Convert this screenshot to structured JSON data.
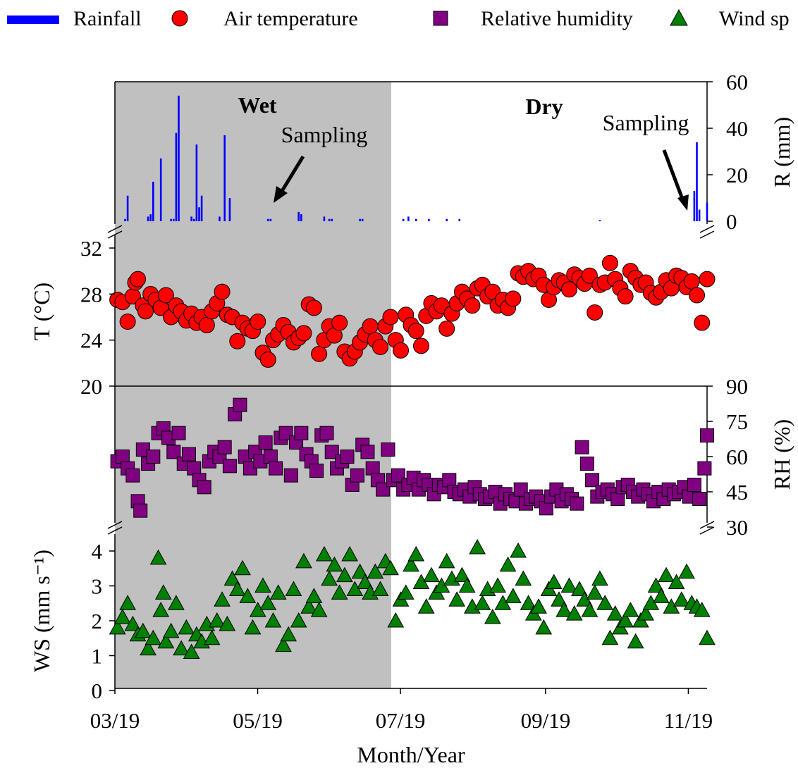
{
  "legend": [
    {
      "label": "Rainfall",
      "marker": "bar",
      "color": "#0000ff"
    },
    {
      "label": "Air temperature",
      "marker": "circle",
      "color": "#ff0000"
    },
    {
      "label": "Relative humidity",
      "marker": "square",
      "color": "#800080"
    },
    {
      "label": "Wind sp",
      "marker": "triangle",
      "color": "#008000"
    }
  ],
  "season_labels": {
    "wet": "Wet",
    "dry": "Dry"
  },
  "annotations": {
    "sampling_1": "Sampling",
    "sampling_2": "Sampling"
  },
  "x_axis": {
    "label": "Month/Year",
    "ticks": [
      "03/19",
      "05/19",
      "07/19",
      "09/19",
      "11/19"
    ]
  },
  "axes": {
    "rain": {
      "label": "R (mm)",
      "ticks": [
        0,
        20,
        40,
        60
      ]
    },
    "temp": {
      "label": "T (°C)",
      "ticks": [
        20,
        24,
        28,
        32
      ]
    },
    "rh": {
      "label": "RH (%)",
      "ticks": [
        30,
        45,
        60,
        75,
        90
      ]
    },
    "ws": {
      "label": "WS (mm s⁻¹)",
      "ticks": [
        0,
        1,
        2,
        3,
        4
      ]
    }
  },
  "chart_data": [
    {
      "type": "bar",
      "title": "",
      "xlabel": "Month/Year",
      "ylabel": "R (mm)",
      "ylim": [
        0,
        60
      ],
      "series": [
        {
          "name": "Rainfall",
          "color": "#0000ff",
          "x": [
            4,
            5,
            13,
            14,
            15,
            18,
            22,
            23,
            24,
            25,
            30,
            31,
            32,
            33,
            34,
            41,
            43,
            45,
            60,
            61,
            72,
            73,
            82,
            84,
            85,
            96,
            97,
            113,
            115,
            118,
            123,
            130,
            135,
            190,
            227,
            228,
            229,
            232
          ],
          "values": [
            1,
            11,
            2,
            3,
            17,
            27,
            1,
            1,
            38,
            54,
            2,
            1,
            33,
            6,
            11,
            2,
            37,
            10,
            1,
            1,
            4,
            3,
            2,
            1,
            1,
            1,
            1,
            1,
            2,
            1,
            1,
            1,
            1,
            0.5,
            13,
            34,
            5,
            8
          ]
        }
      ],
      "shaded_period": {
        "label": "Wet",
        "x_start": 0,
        "x_end": 107
      },
      "unshaded_period": {
        "label": "Dry"
      }
    },
    {
      "type": "scatter",
      "xlabel": "Month/Year",
      "ylabel": "T (°C)",
      "ylim": [
        20,
        32
      ],
      "series": [
        {
          "name": "Air temperature",
          "color": "#ff0000",
          "x": [
            1,
            3,
            5,
            7,
            8,
            9,
            11,
            12,
            14,
            16,
            18,
            20,
            22,
            24,
            26,
            28,
            30,
            32,
            34,
            36,
            38,
            40,
            42,
            44,
            46,
            48,
            50,
            52,
            54,
            56,
            58,
            60,
            62,
            64,
            66,
            68,
            70,
            72,
            74,
            76,
            78,
            80,
            82,
            84,
            86,
            88,
            90,
            92,
            94,
            96,
            98,
            100,
            102,
            104,
            106,
            108,
            110,
            112,
            114,
            116,
            118,
            120,
            122,
            124,
            126,
            128,
            130,
            132,
            134,
            136,
            138,
            140,
            142,
            144,
            146,
            148,
            150,
            152,
            154,
            156,
            158,
            160,
            162,
            164,
            166,
            168,
            170,
            172,
            174,
            176,
            178,
            180,
            182,
            184,
            186,
            188,
            190,
            192,
            194,
            196,
            198,
            200,
            202,
            204,
            206,
            208,
            210,
            212,
            214,
            216,
            218,
            220,
            222,
            224,
            226,
            228,
            230,
            232
          ],
          "values": [
            27.5,
            27.3,
            25.6,
            27.8,
            29,
            29.3,
            27,
            26.5,
            28,
            27.5,
            26.8,
            27.9,
            26,
            27,
            26.5,
            25.7,
            26.3,
            25.5,
            26,
            25.3,
            26.5,
            27.2,
            28.2,
            26.2,
            26,
            23.9,
            25.5,
            25,
            24.8,
            25.6,
            22.9,
            22.3,
            24,
            24.5,
            25.3,
            24.7,
            23.8,
            24.2,
            24.6,
            27.1,
            26.8,
            22.8,
            24,
            25.2,
            24.4,
            25.5,
            23,
            22.4,
            23,
            23.8,
            24.5,
            25.2,
            24,
            23.4,
            25.2,
            26,
            24,
            23.1,
            26.2,
            25.3,
            24.8,
            23.5,
            26.1,
            27.2,
            26.5,
            27,
            25,
            26.3,
            27.2,
            28.2,
            27.6,
            27,
            28.5,
            28.8,
            27.8,
            28.2,
            27,
            27.5,
            26.8,
            27.6,
            29.8,
            29.5,
            30,
            29.3,
            29.6,
            28.8,
            27.5,
            28.6,
            29.2,
            29,
            28.4,
            29.7,
            29.4,
            28.9,
            29.6,
            26.4,
            28.8,
            29,
            30.7,
            29.3,
            28.5,
            27.8,
            30,
            29.4,
            28.8,
            29,
            28.1,
            27.7,
            28.2,
            29.2,
            28.5,
            29.6,
            29.4,
            28.6,
            29.1,
            27.9,
            25.5,
            29.3
          ]
        }
      ]
    },
    {
      "type": "scatter",
      "xlabel": "Month/Year",
      "ylabel": "RH (%)",
      "ylim": [
        30,
        90
      ],
      "series": [
        {
          "name": "Relative humidity",
          "color": "#800080",
          "x": [
            1,
            3,
            5,
            7,
            9,
            10,
            11,
            13,
            15,
            17,
            19,
            21,
            23,
            25,
            27,
            29,
            31,
            33,
            35,
            37,
            39,
            41,
            43,
            45,
            47,
            49,
            51,
            53,
            55,
            57,
            59,
            61,
            63,
            65,
            67,
            69,
            71,
            73,
            75,
            77,
            79,
            81,
            83,
            85,
            87,
            89,
            91,
            93,
            95,
            97,
            99,
            101,
            103,
            105,
            107,
            109,
            111,
            113,
            115,
            117,
            119,
            121,
            123,
            125,
            127,
            129,
            131,
            133,
            135,
            137,
            139,
            141,
            143,
            145,
            147,
            149,
            151,
            153,
            155,
            157,
            159,
            161,
            163,
            165,
            167,
            169,
            171,
            173,
            175,
            177,
            179,
            181,
            183,
            185,
            187,
            189,
            191,
            193,
            195,
            197,
            199,
            201,
            203,
            205,
            207,
            209,
            211,
            213,
            215,
            217,
            219,
            221,
            223,
            225,
            227,
            229,
            231,
            232
          ],
          "values": [
            58,
            60,
            55,
            52,
            41,
            37,
            63,
            57,
            60,
            70,
            72,
            68,
            62,
            70,
            57,
            61,
            55,
            50,
            47,
            58,
            62,
            60,
            64,
            56,
            78,
            82,
            60,
            55,
            62,
            58,
            66,
            60,
            55,
            68,
            70,
            52,
            66,
            70,
            61,
            58,
            54,
            69,
            70,
            62,
            55,
            58,
            60,
            48,
            52,
            65,
            62,
            55,
            50,
            46,
            63,
            50,
            52,
            46,
            48,
            51,
            46,
            50,
            48,
            44,
            48,
            47,
            50,
            45,
            44,
            46,
            43,
            47,
            44,
            42,
            43,
            45,
            40,
            44,
            42,
            41,
            46,
            40,
            42,
            43,
            41,
            38,
            43,
            46,
            41,
            44,
            42,
            40,
            64,
            57,
            50,
            43,
            45,
            46,
            44,
            42,
            47,
            48,
            45,
            43,
            46,
            44,
            41,
            45,
            42,
            46,
            44,
            45,
            47,
            43,
            48,
            42,
            55,
            69
          ]
        }
      ]
    },
    {
      "type": "scatter",
      "xlabel": "Month/Year",
      "ylabel": "WS (mm s⁻¹)",
      "ylim": [
        0,
        4
      ],
      "series": [
        {
          "name": "Wind speed",
          "color": "#008000",
          "x": [
            1,
            3,
            5,
            7,
            9,
            11,
            13,
            15,
            17,
            18,
            19,
            20,
            22,
            24,
            26,
            28,
            30,
            32,
            34,
            36,
            38,
            40,
            42,
            44,
            46,
            48,
            50,
            52,
            54,
            56,
            58,
            60,
            62,
            64,
            66,
            68,
            70,
            72,
            74,
            76,
            78,
            80,
            82,
            84,
            86,
            88,
            90,
            92,
            94,
            96,
            98,
            100,
            102,
            104,
            106,
            108,
            110,
            112,
            114,
            116,
            118,
            120,
            122,
            124,
            126,
            128,
            130,
            132,
            134,
            136,
            138,
            140,
            142,
            144,
            146,
            148,
            150,
            152,
            154,
            156,
            158,
            160,
            162,
            164,
            166,
            168,
            170,
            172,
            174,
            176,
            178,
            180,
            182,
            184,
            186,
            188,
            190,
            192,
            194,
            196,
            198,
            200,
            202,
            204,
            206,
            208,
            210,
            212,
            214,
            216,
            218,
            220,
            222,
            224,
            226,
            228,
            230,
            232
          ],
          "values": [
            1.8,
            2.1,
            2.5,
            1.9,
            1.6,
            1.7,
            1.2,
            1.5,
            3.8,
            2.3,
            2.8,
            1.4,
            1.7,
            2.5,
            1.2,
            1.8,
            1.1,
            1.6,
            1.4,
            1.9,
            1.5,
            2.0,
            2.6,
            1.9,
            3.2,
            2.9,
            3.5,
            2.7,
            1.8,
            2.3,
            3.0,
            2.5,
            2.0,
            2.8,
            1.3,
            1.6,
            2.9,
            2.0,
            3.7,
            2.4,
            2.7,
            2.3,
            3.9,
            3.2,
            3.6,
            2.8,
            3.3,
            3.9,
            2.9,
            3.4,
            3.1,
            2.8,
            3.4,
            2.9,
            3.7,
            3.5,
            2.0,
            2.6,
            2.8,
            3.6,
            3.9,
            3.1,
            2.4,
            3.3,
            2.8,
            3.0,
            3.7,
            3.2,
            2.6,
            3.3,
            3.0,
            2.4,
            4.1,
            2.5,
            2.9,
            2.1,
            3.0,
            2.5,
            3.6,
            2.7,
            4.0,
            3.2,
            2.5,
            2.2,
            2.4,
            1.8,
            2.9,
            3.1,
            2.6,
            2.3,
            3.0,
            2.2,
            2.9,
            2.6,
            2.3,
            2.8,
            3.2,
            2.5,
            1.5,
            2.2,
            1.8,
            2.0,
            2.3,
            1.4,
            2.0,
            2.2,
            2.5,
            3.0,
            2.7,
            3.3,
            2.4,
            3.1,
            2.6,
            3.4,
            2.5,
            2.4,
            2.3,
            1.5
          ]
        }
      ]
    }
  ]
}
